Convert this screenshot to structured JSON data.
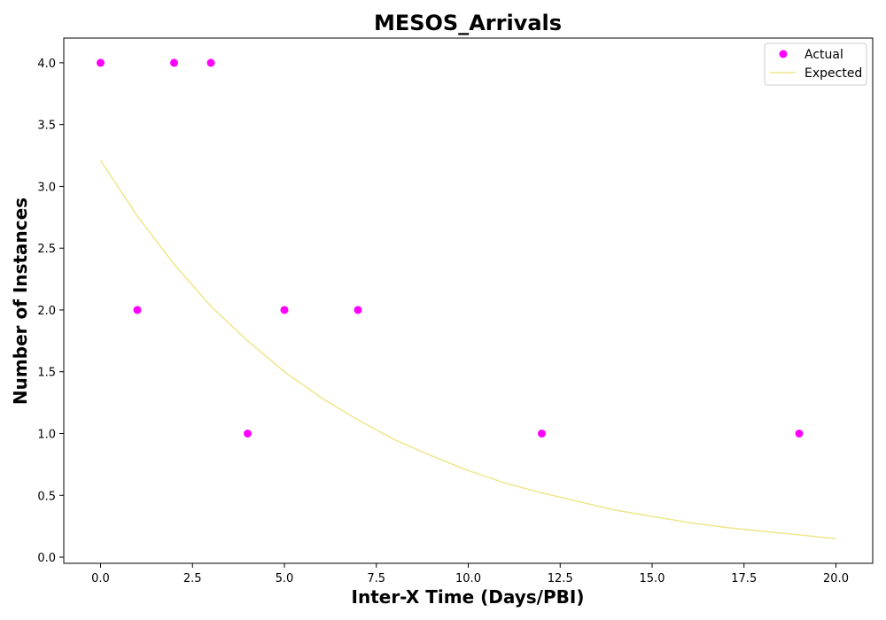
{
  "chart_data": {
    "type": "scatter",
    "title": "MESOS_Arrivals",
    "xlabel": "Inter-X Time (Days/PBI)",
    "ylabel": "Number of Instances",
    "xlim": [
      -1,
      21
    ],
    "ylim": [
      -0.05,
      4.2
    ],
    "xticks": [
      "0.0",
      "2.5",
      "5.0",
      "7.5",
      "10.0",
      "12.5",
      "15.0",
      "17.5",
      "20.0"
    ],
    "yticks": [
      "0.0",
      "0.5",
      "1.0",
      "1.5",
      "2.0",
      "2.5",
      "3.0",
      "3.5",
      "4.0"
    ],
    "legend_position": "top-right",
    "series": [
      {
        "name": "Actual",
        "kind": "scatter",
        "color": "#ff00ff",
        "x": [
          0,
          1,
          2,
          3,
          4,
          5,
          7,
          12,
          19
        ],
        "y": [
          4,
          2,
          4,
          4,
          1,
          2,
          2,
          1,
          1
        ]
      },
      {
        "name": "Expected",
        "kind": "line",
        "color": "#f0e68c",
        "x": [
          0,
          1,
          2,
          3,
          4,
          5,
          6,
          7,
          8,
          9,
          10,
          11,
          12,
          13,
          14,
          15,
          16,
          17,
          18,
          19,
          20
        ],
        "y": [
          3.21,
          2.76,
          2.37,
          2.03,
          1.75,
          1.5,
          1.29,
          1.11,
          0.95,
          0.82,
          0.7,
          0.6,
          0.52,
          0.45,
          0.38,
          0.33,
          0.28,
          0.24,
          0.21,
          0.18,
          0.15
        ]
      }
    ]
  }
}
